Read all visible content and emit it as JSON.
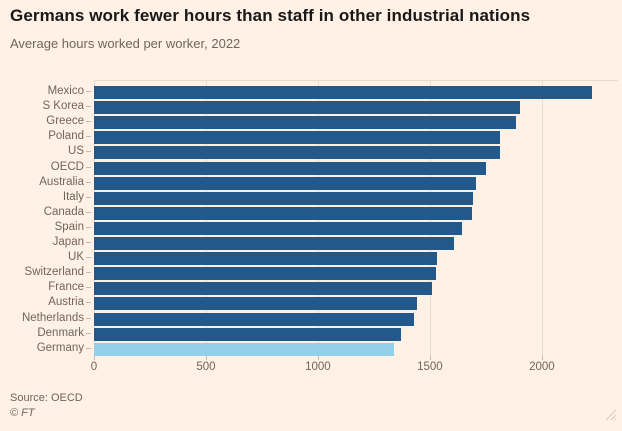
{
  "header": {
    "title": "Germans work fewer hours than staff in other industrial nations",
    "subtitle": "Average hours worked per worker, 2022"
  },
  "footer": {
    "source": "Source: OECD",
    "credit": "© FT"
  },
  "colors": {
    "background": "#FFF1E5",
    "bar": "#22588A",
    "highlight_bar": "#92CFE8",
    "title_text": "#1A1817",
    "muted_text": "#6F655C",
    "gridline": "#E9DACB",
    "tick_mark": "#C6B9AB"
  },
  "icons": {
    "resize_handle": "diagonal-resize-grip"
  },
  "chart_data": {
    "type": "bar",
    "orientation": "horizontal",
    "title": "Germans work fewer hours than staff in other industrial nations",
    "subtitle": "Average hours worked per worker, 2022",
    "xlabel": "",
    "ylabel": "",
    "categories": [
      "Mexico",
      "S Korea",
      "Greece",
      "Poland",
      "US",
      "OECD",
      "Australia",
      "Italy",
      "Canada",
      "Spain",
      "Japan",
      "UK",
      "Switzerland",
      "France",
      "Austria",
      "Netherlands",
      "Denmark",
      "Germany"
    ],
    "values": [
      2226,
      1901,
      1886,
      1815,
      1811,
      1752,
      1707,
      1694,
      1686,
      1644,
      1607,
      1532,
      1529,
      1511,
      1444,
      1427,
      1372,
      1341
    ],
    "highlight_category": "Germany",
    "x_ticks": [
      0,
      500,
      1000,
      1500,
      2000
    ],
    "xlim": [
      0,
      2340
    ],
    "grid": "vertical",
    "legend": "none",
    "source": "Source: OECD"
  }
}
